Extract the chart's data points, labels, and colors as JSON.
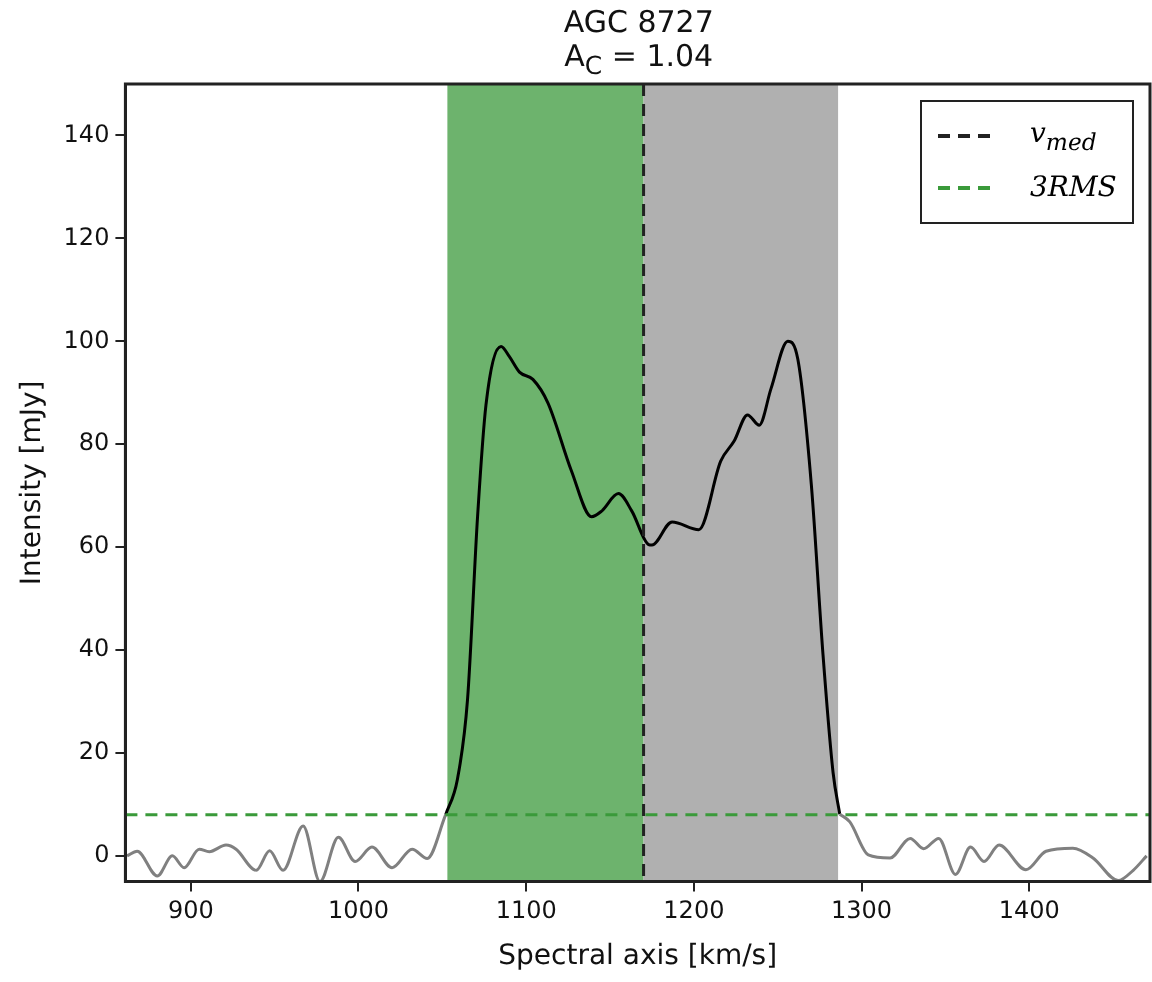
{
  "chart_data": {
    "type": "line",
    "title": "AGC 8727",
    "subtitle": "A$_{C}$ = 1.04",
    "xlabel": "Spectral axis [km/s]",
    "ylabel": "Intensity [mJy]",
    "series": [
      {
        "color": "#808080",
        "x": [
          862,
          868,
          880,
          889,
          896,
          905,
          911,
          921,
          927,
          939,
          947,
          955,
          967,
          977,
          988,
          998,
          1008,
          1020,
          1032,
          1041,
          1052,
          null,
          1287,
          1293,
          1304,
          1317,
          1329,
          1337,
          1346,
          1356,
          1365,
          1373,
          1382,
          1398,
          1410,
          1426,
          1438,
          1453,
          1462,
          1470
        ],
        "values": [
          0,
          0.9,
          -3.9,
          0,
          -2.3,
          1.3,
          0.8,
          2.1,
          1.3,
          -2.8,
          1,
          -2.8,
          5.8,
          -5,
          3.6,
          -1.1,
          1.7,
          -2.3,
          1.3,
          -0.5,
          8,
          null,
          8.1,
          6.6,
          0.2,
          -0.4,
          3.4,
          1.4,
          3.4,
          -3.6,
          1.7,
          -1.1,
          2.1,
          -2.7,
          0.9,
          1.5,
          -0.4,
          -4.8,
          -2.8,
          0
        ]
      },
      {
        "color": "#000000",
        "x": [
          1052,
          1059,
          1065,
          1071,
          1076,
          1085,
          1090,
          1096,
          1104,
          1113,
          1127,
          1139,
          1145,
          1155,
          1163,
          1173,
          1175,
          1187,
          1203,
          1216,
          1224,
          1232,
          1239,
          1246,
          1256,
          1262,
          1270,
          1277,
          1283,
          1287
        ],
        "values": [
          8,
          14.9,
          30.3,
          65.9,
          87.6,
          99,
          97,
          94,
          92.6,
          88,
          74.8,
          65.9,
          67,
          70.4,
          67,
          60.5,
          60.4,
          64.9,
          63.4,
          76.7,
          80.6,
          85.7,
          83.7,
          90.8,
          100,
          96.5,
          72.3,
          39.1,
          16.2,
          8.1
        ]
      }
    ],
    "xlim": [
      861,
      1472
    ],
    "xticks": [
      900,
      1000,
      1100,
      1200,
      1300,
      1400
    ],
    "ylim": [
      -5,
      150
    ],
    "yticks": [
      0,
      20,
      40,
      60,
      80,
      100,
      120,
      140
    ],
    "bands": [
      {
        "axis": "x",
        "from": 1053,
        "to": 1170,
        "color": "#6db36d"
      },
      {
        "axis": "x",
        "from": 1170,
        "to": 1286,
        "color": "#b0b0b0"
      }
    ],
    "ref_lines": [
      {
        "axis": "x",
        "value": 1170,
        "label": "v$_{med}$",
        "color": "#222222",
        "line_style": "dashed"
      },
      {
        "axis": "y",
        "value": 8,
        "label": "3RMS",
        "color": "#3a9a3a",
        "line_style": "dashed"
      }
    ],
    "legend": "top right",
    "marker": "none"
  }
}
